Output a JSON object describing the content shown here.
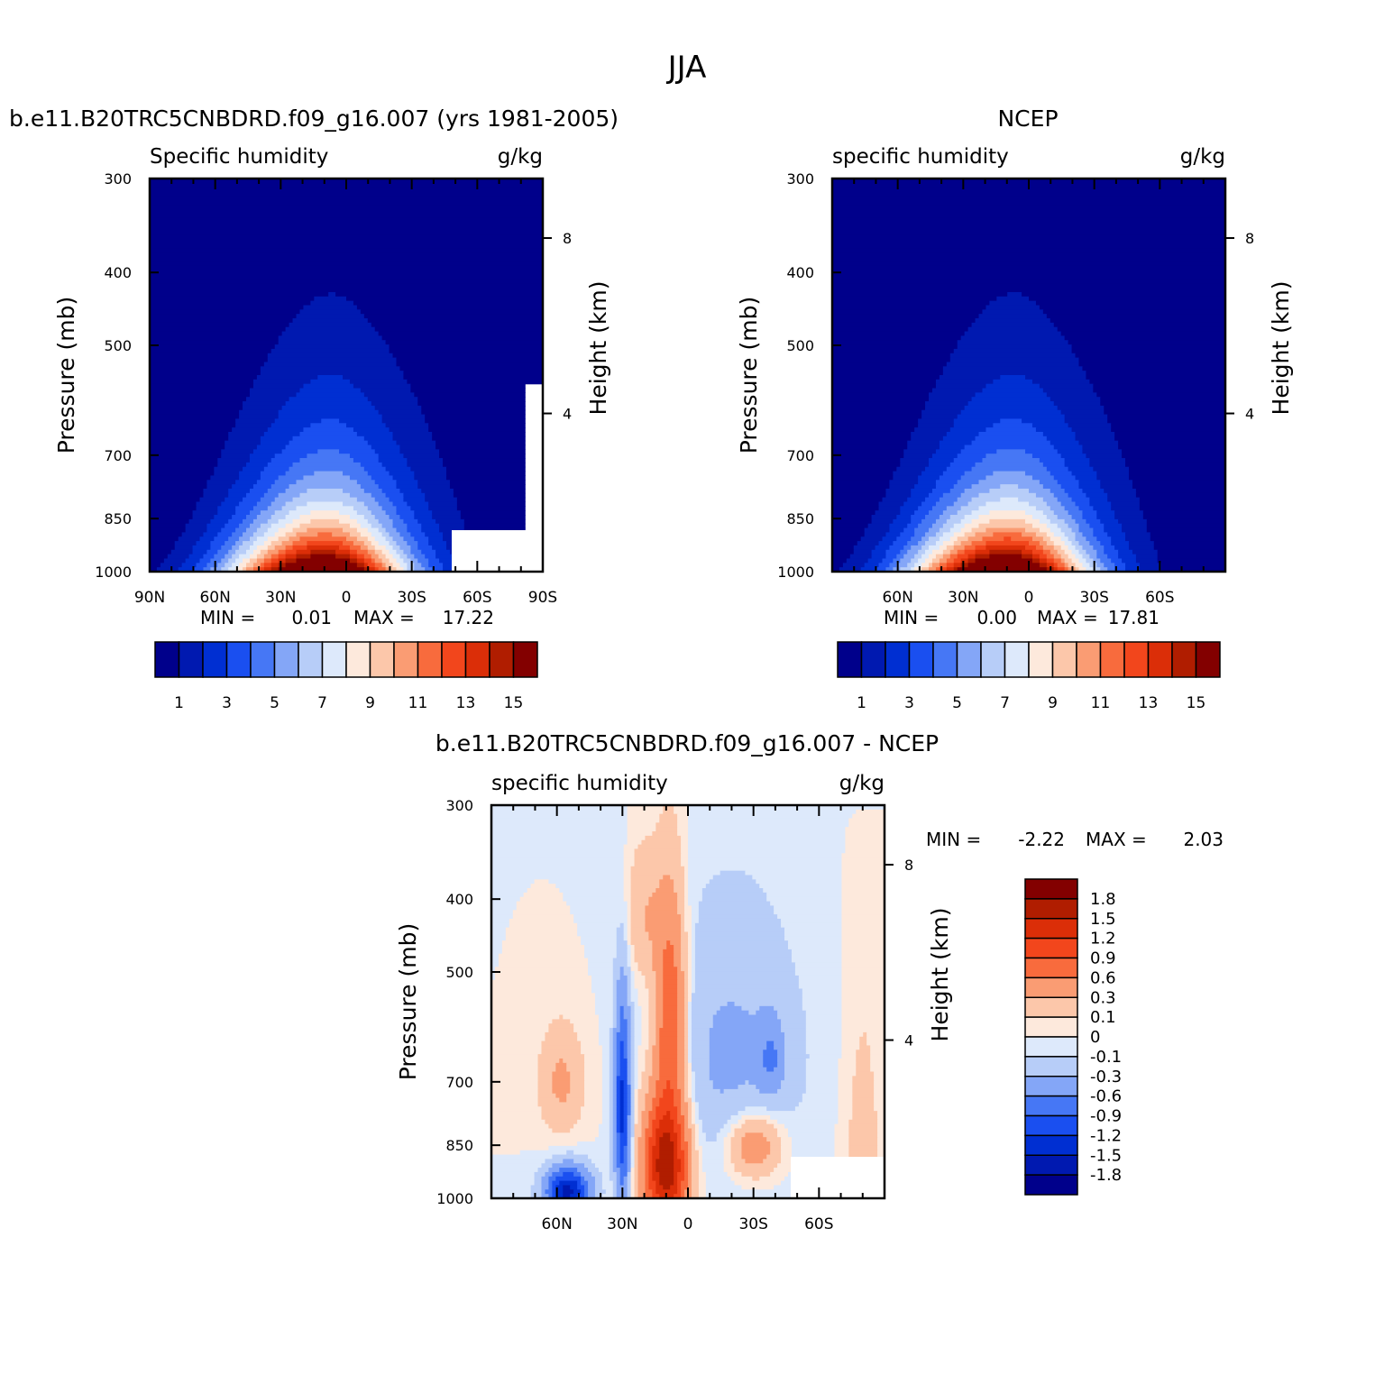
{
  "figure": {
    "title": "JJA"
  },
  "panels": {
    "model": {
      "left_title": "b.e11.B20TRC5CNBDRD.f09_g16.007 (yrs 1981-2005)",
      "var_label": "Specific humidity",
      "units": "g/kg",
      "stats": {
        "min_label": "MIN =",
        "min": "0.01",
        "max_label": "MAX =",
        "max": "17.22"
      }
    },
    "obs": {
      "center_title": "NCEP",
      "var_label": "specific humidity",
      "units": "g/kg",
      "stats": {
        "min_label": "MIN =",
        "min": "0.00",
        "max_label": "MAX =",
        "max": "17.81"
      }
    },
    "diff": {
      "center_title": "b.e11.B20TRC5CNBDRD.f09_g16.007 - NCEP",
      "var_label": "specific humidity",
      "units": "g/kg",
      "stats": {
        "min_label": "MIN =",
        "min": "-2.22",
        "max_label": "MAX =",
        "max": "2.03"
      }
    }
  },
  "axes": {
    "ylabel": "Pressure (mb)",
    "y2label": "Height (km)",
    "pressure_ticks": [
      "300",
      "400",
      "500",
      "700",
      "850",
      "1000"
    ],
    "height_ticks": [
      "8",
      "4"
    ],
    "lat_ticks_full": [
      "90N",
      "60N",
      "30N",
      "0",
      "30S",
      "60S",
      "90S"
    ],
    "lat_ticks_short": [
      "60N",
      "30N",
      "0",
      "30S",
      "60S"
    ]
  },
  "colorbars": {
    "main": {
      "colors": [
        "#00008b",
        "#0019b0",
        "#002fd2",
        "#1a4ff0",
        "#4677f5",
        "#84a6f7",
        "#b7cdf8",
        "#dde9fb",
        "#fde9dc",
        "#fcc7aa",
        "#fa9c73",
        "#f86b3d",
        "#f2461c",
        "#db2e08",
        "#b01d00",
        "#830000"
      ],
      "labels": [
        "1",
        "3",
        "5",
        "7",
        "9",
        "11",
        "13",
        "15"
      ]
    },
    "diff": {
      "colors": [
        "#830000",
        "#b01d00",
        "#db2e08",
        "#f2461c",
        "#f86b3d",
        "#fa9c73",
        "#fcc7aa",
        "#fde9dc",
        "#dde9fb",
        "#b7cdf8",
        "#84a6f7",
        "#4677f5",
        "#1a4ff0",
        "#002fd2",
        "#0019b0",
        "#00008b"
      ],
      "labels": [
        "1.8",
        "1.5",
        "1.2",
        "0.9",
        "0.6",
        "0.3",
        "0.1",
        "0",
        "-0.1",
        "-0.3",
        "-0.6",
        "-0.9",
        "-1.2",
        "-1.5",
        "-1.8"
      ]
    }
  },
  "chart_data": [
    {
      "type": "heatmap",
      "title": "b.e11.B20TRC5CNBDRD.f09_g16.007 (yrs 1981-2005)",
      "xlabel": "",
      "ylabel": "Pressure (mb)",
      "y2label": "Height (km)",
      "x": [
        "90N",
        "60N",
        "30N",
        "0",
        "30S",
        "60S",
        "90S"
      ],
      "y": [
        300,
        400,
        500,
        700,
        850,
        1000
      ],
      "levels": [
        1,
        2,
        3,
        4,
        5,
        6,
        7,
        8,
        9,
        10,
        11,
        12,
        13,
        14,
        15
      ],
      "min": 0.01,
      "max": 17.22,
      "units": "g/kg",
      "peak_lat": 8,
      "peak_value": 17.22
    },
    {
      "type": "heatmap",
      "title": "NCEP",
      "xlabel": "",
      "ylabel": "Pressure (mb)",
      "y2label": "Height (km)",
      "x": [
        "60N",
        "30N",
        "0",
        "30S",
        "60S"
      ],
      "y": [
        300,
        400,
        500,
        700,
        850,
        1000
      ],
      "levels": [
        1,
        2,
        3,
        4,
        5,
        6,
        7,
        8,
        9,
        10,
        11,
        12,
        13,
        14,
        15
      ],
      "min": 0.0,
      "max": 17.81,
      "units": "g/kg",
      "peak_lat": 8,
      "peak_value": 17.81
    },
    {
      "type": "heatmap",
      "title": "b.e11.B20TRC5CNBDRD.f09_g16.007 - NCEP",
      "xlabel": "",
      "ylabel": "Pressure (mb)",
      "y2label": "Height (km)",
      "x": [
        "60N",
        "30N",
        "0",
        "30S",
        "60S"
      ],
      "y": [
        300,
        400,
        500,
        700,
        850,
        1000
      ],
      "levels": [
        -1.8,
        -1.5,
        -1.2,
        -0.9,
        -0.6,
        -0.3,
        -0.1,
        0,
        0.1,
        0.3,
        0.6,
        0.9,
        1.2,
        1.5,
        1.8
      ],
      "min": -2.22,
      "max": 2.03,
      "units": "g/kg"
    }
  ]
}
